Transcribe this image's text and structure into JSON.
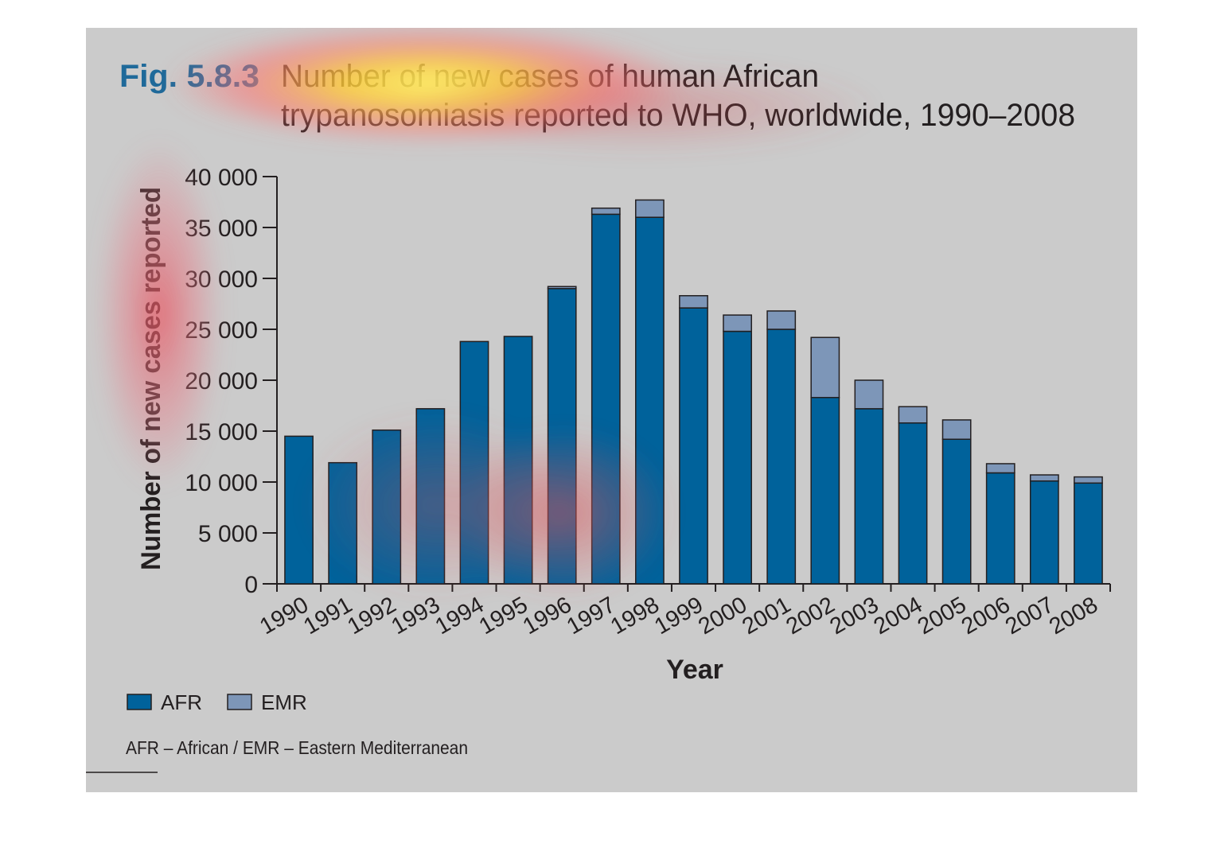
{
  "figure": {
    "number": "Fig. 5.8.3",
    "title_line1": "Number of new cases of human African",
    "title_line2": "trypanosomiasis reported to WHO, worldwide, 1990–2008",
    "footnote": "AFR – African / EMR – Eastern Mediterranean"
  },
  "colors": {
    "panel": "#cbcbcb",
    "afr": "#00629b",
    "emr": "#7d96b8",
    "fig_number": "#1f6a9a",
    "text": "#231f20"
  },
  "chart_data": {
    "type": "bar",
    "stacked": true,
    "xlabel": "Year",
    "ylabel": "Number of new cases reported",
    "ylim": [
      0,
      40000
    ],
    "yticks": [
      0,
      5000,
      10000,
      15000,
      20000,
      25000,
      30000,
      35000,
      40000
    ],
    "ytick_labels": [
      "0",
      "5 000",
      "10 000",
      "15 000",
      "20 000",
      "25 000",
      "30 000",
      "35 000",
      "40 000"
    ],
    "categories": [
      "1990",
      "1991",
      "1992",
      "1993",
      "1994",
      "1995",
      "1996",
      "1997",
      "1998",
      "1999",
      "2000",
      "2001",
      "2002",
      "2003",
      "2004",
      "2005",
      "2006",
      "2007",
      "2008"
    ],
    "series": [
      {
        "name": "AFR",
        "values": [
          14500,
          11900,
          15100,
          17200,
          23800,
          24300,
          29000,
          36300,
          36000,
          27100,
          24800,
          25000,
          18300,
          17200,
          15800,
          14200,
          10900,
          10100,
          9900
        ]
      },
      {
        "name": "EMR",
        "values": [
          0,
          0,
          0,
          0,
          0,
          0,
          200,
          600,
          1700,
          1200,
          1600,
          1800,
          5900,
          2800,
          1600,
          1900,
          900,
          600,
          600
        ]
      }
    ],
    "legend": {
      "position": "bottom-left",
      "entries": [
        "AFR",
        "EMR"
      ]
    },
    "grid": false
  }
}
